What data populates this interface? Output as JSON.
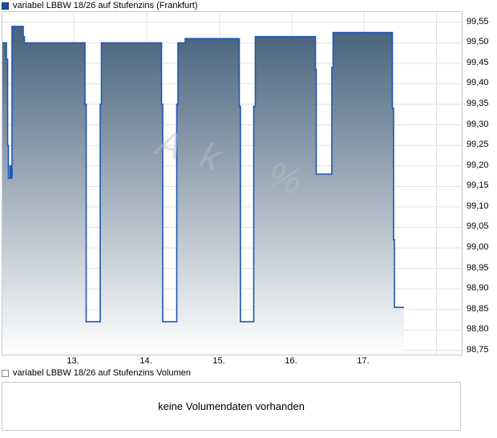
{
  "title": {
    "label": "variabel LBBW 18/26 auf Stufenzins (Frankfurt)"
  },
  "volume_legend": {
    "label": "variabel LBBW 18/26 auf Stufenzins Volumen"
  },
  "volume_panel": {
    "message": "keine Volumendaten vorhanden"
  },
  "watermark": {
    "text": "Ak %"
  },
  "colors": {
    "line": "#1e56b0",
    "fill_top": "#46617b",
    "fill_bottom": "#ffffff",
    "grid": "#e1e1e6",
    "plot_border": "#c8c8ce",
    "title_swatch": "#1d4f9f",
    "text": "#000000"
  },
  "chart_data": {
    "type": "area",
    "title": "variabel LBBW 18/26 auf Stufenzins (Frankfurt)",
    "xlabel": "",
    "ylabel": "",
    "grid": true,
    "legend_position": "top-left",
    "y_axis": {
      "max_value": 99.575,
      "min_value": 98.74,
      "ticks": [
        {
          "label": "99,55",
          "value": 99.55
        },
        {
          "label": "99,50",
          "value": 99.5
        },
        {
          "label": "99,45",
          "value": 99.45
        },
        {
          "label": "99,40",
          "value": 99.4
        },
        {
          "label": "99,35",
          "value": 99.35
        },
        {
          "label": "99,30",
          "value": 99.3
        },
        {
          "label": "99,25",
          "value": 99.25
        },
        {
          "label": "99,20",
          "value": 99.2
        },
        {
          "label": "99,15",
          "value": 99.15
        },
        {
          "label": "99,10",
          "value": 99.1
        },
        {
          "label": "99,05",
          "value": 99.05
        },
        {
          "label": "99,00",
          "value": 99.0
        },
        {
          "label": "98,95",
          "value": 98.95
        },
        {
          "label": "98,90",
          "value": 98.9
        },
        {
          "label": "98,85",
          "value": 98.85
        },
        {
          "label": "98,80",
          "value": 98.8
        },
        {
          "label": "98,75",
          "value": 98.75
        }
      ]
    },
    "x_axis": {
      "unit": "day of month",
      "ticks": [
        {
          "label": "13.",
          "x": 89
        },
        {
          "label": "14.",
          "x": 180
        },
        {
          "label": "15.",
          "x": 271
        },
        {
          "label": "16.",
          "x": 361
        },
        {
          "label": "17.",
          "x": 451
        }
      ],
      "extra_gridlines_x": [
        541.5
      ]
    },
    "series": [
      {
        "name": "variabel LBBW 18/26 auf Stufenzins",
        "style": "step-area",
        "points": [
          [
            0,
            99.5
          ],
          [
            5,
            99.5
          ],
          [
            5,
            99.46
          ],
          [
            6.5,
            99.46
          ],
          [
            6.5,
            99.25
          ],
          [
            7.5,
            99.25
          ],
          [
            7.5,
            99.17
          ],
          [
            9.5,
            99.17
          ],
          [
            9.5,
            99.2
          ],
          [
            10.5,
            99.2
          ],
          [
            10.5,
            99.17
          ],
          [
            12,
            99.17
          ],
          [
            12,
            99.54
          ],
          [
            26,
            99.54
          ],
          [
            26,
            99.515
          ],
          [
            27.5,
            99.515
          ],
          [
            27.5,
            99.5
          ],
          [
            103,
            99.5
          ],
          [
            103,
            99.35
          ],
          [
            104.5,
            99.35
          ],
          [
            104.5,
            98.82
          ],
          [
            122,
            98.82
          ],
          [
            122,
            99.35
          ],
          [
            123.5,
            99.35
          ],
          [
            123.5,
            99.5
          ],
          [
            198.5,
            99.5
          ],
          [
            198.5,
            99.35
          ],
          [
            200,
            99.35
          ],
          [
            200,
            98.82
          ],
          [
            217.5,
            98.82
          ],
          [
            217.5,
            99.35
          ],
          [
            219,
            99.35
          ],
          [
            219,
            99.5
          ],
          [
            228,
            99.5
          ],
          [
            228,
            99.51
          ],
          [
            295.5,
            99.51
          ],
          [
            295.5,
            99.345
          ],
          [
            297,
            99.345
          ],
          [
            297,
            98.82
          ],
          [
            313.5,
            98.82
          ],
          [
            313.5,
            99.345
          ],
          [
            315.5,
            99.345
          ],
          [
            315.5,
            99.515
          ],
          [
            390.5,
            99.515
          ],
          [
            390.5,
            99.435
          ],
          [
            391.5,
            99.435
          ],
          [
            391.5,
            99.18
          ],
          [
            411,
            99.18
          ],
          [
            411,
            99.44
          ],
          [
            412.5,
            99.44
          ],
          [
            412.5,
            99.525
          ],
          [
            486.5,
            99.525
          ],
          [
            486.5,
            99.34
          ],
          [
            488,
            99.34
          ],
          [
            488,
            99.02
          ],
          [
            489,
            99.02
          ],
          [
            489,
            98.855
          ],
          [
            501,
            98.855
          ]
        ]
      }
    ]
  }
}
